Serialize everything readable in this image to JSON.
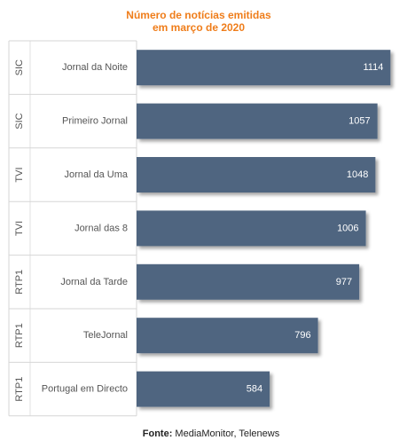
{
  "chart_data": {
    "type": "bar",
    "orientation": "horizontal",
    "title_lines": [
      "Número de notícias emitidas",
      "em março de 2020"
    ],
    "groups": [
      "SIC",
      "SIC",
      "TVI",
      "TVI",
      "RTP1",
      "RTP1",
      "RTP1"
    ],
    "categories": [
      "Jornal da Noite",
      "Primeiro Jornal",
      "Jornal da Uma",
      "Jornal das 8",
      "Jornal da Tarde",
      "TeleJornal",
      "Portugal em Directo"
    ],
    "values": [
      1114,
      1057,
      1048,
      1006,
      977,
      796,
      584
    ],
    "xlim": [
      0,
      1140
    ],
    "grid": false,
    "legend": "none",
    "bar_color": "#4f6580",
    "title_color": "#ef7d1a"
  },
  "source": {
    "prefix": "Fonte:",
    "text": " MediaMonitor, Telenews"
  }
}
